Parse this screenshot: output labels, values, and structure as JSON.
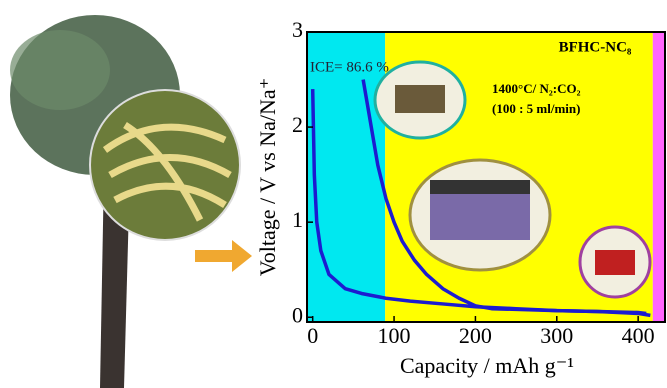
{
  "chart_data": {
    "type": "line",
    "title": "BFHC-NC₈",
    "annotations": [
      "ICE= 86.6 %",
      "1400°C/ N₂:CO₂",
      "(100 : 5 ml/min)"
    ],
    "xlabel": "Capacity / mAh g⁻¹",
    "ylabel": "Voltage / V vs Na/Na⁺",
    "xlim": [
      -7,
      433
    ],
    "ylim": [
      -0.05,
      3
    ],
    "xticks": [
      0,
      100,
      200,
      300,
      400
    ],
    "yticks": [
      0,
      1,
      2,
      3
    ],
    "bands": [
      {
        "from": -7,
        "to": 89,
        "color": "#00e8f0"
      },
      {
        "from": 89,
        "to": 418,
        "color": "#ffff00"
      },
      {
        "from": 418,
        "to": 433,
        "color": "#ff66ff"
      }
    ],
    "series": [
      {
        "color": "#1c1cd0",
        "x": [
          0,
          2,
          5,
          10,
          20,
          40,
          60,
          90,
          120,
          160,
          200,
          250,
          300,
          350,
          400,
          415
        ],
        "values": [
          2.4,
          1.5,
          1.0,
          0.7,
          0.45,
          0.3,
          0.25,
          0.2,
          0.17,
          0.14,
          0.11,
          0.09,
          0.07,
          0.06,
          0.04,
          0.02
        ]
      },
      {
        "color": "#1c1cd0",
        "x": [
          62,
          70,
          80,
          90,
          100,
          110,
          125,
          140,
          160,
          180,
          200,
          220,
          260,
          300,
          350,
          400,
          410
        ],
        "values": [
          2.5,
          2.1,
          1.6,
          1.25,
          1.0,
          0.8,
          0.6,
          0.45,
          0.3,
          0.2,
          0.12,
          0.09,
          0.08,
          0.07,
          0.06,
          0.05,
          0.04
        ]
      }
    ]
  }
}
